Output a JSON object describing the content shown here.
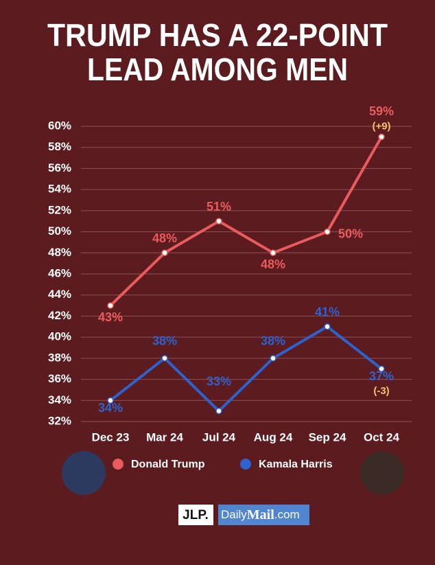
{
  "chart_data": {
    "type": "line",
    "title": [
      "TRUMP HAS A 22-POINT",
      "LEAD AMONG MEN"
    ],
    "categories": [
      "Dec 23",
      "Mar 24",
      "Jul 24",
      "Aug 24",
      "Sep 24",
      "Oct 24"
    ],
    "series": [
      {
        "name": "Donald Trump",
        "color": "#ea5b5e",
        "values": [
          43,
          48,
          51,
          48,
          50,
          59
        ],
        "value_labels": [
          "43%",
          "48%",
          "51%",
          "48%",
          "50%",
          "59%"
        ]
      },
      {
        "name": "Kamala Harris",
        "color": "#2d62cf",
        "values": [
          34,
          38,
          33,
          38,
          41,
          37
        ],
        "value_labels": [
          "34%",
          "38%",
          "33%",
          "38%",
          "41%",
          "37%"
        ]
      }
    ],
    "annotations": [
      {
        "text": "(+9)",
        "series": 0,
        "index": 5
      },
      {
        "text": "(-3)",
        "series": 1,
        "index": 5
      }
    ],
    "ylim": [
      32,
      60
    ],
    "yticks": [
      {
        "value": 32,
        "label": "32%"
      },
      {
        "value": 34,
        "label": "34%"
      },
      {
        "value": 36,
        "label": "36%"
      },
      {
        "value": 38,
        "label": "38%"
      },
      {
        "value": 40,
        "label": "40%"
      },
      {
        "value": 42,
        "label": "42%"
      },
      {
        "value": 44,
        "label": "44%"
      },
      {
        "value": 46,
        "label": "46%"
      },
      {
        "value": 48,
        "label": "48%"
      },
      {
        "value": 50,
        "label": "50%"
      },
      {
        "value": 52,
        "label": "52%"
      },
      {
        "value": 54,
        "label": "54%"
      },
      {
        "value": 56,
        "label": "56%"
      },
      {
        "value": 58,
        "label": "58%"
      },
      {
        "value": 60,
        "label": "60%"
      }
    ],
    "grid": true
  },
  "footer": {
    "jlp": "JLP.",
    "dailymail": [
      "Daily",
      "Mail",
      ".com"
    ]
  }
}
